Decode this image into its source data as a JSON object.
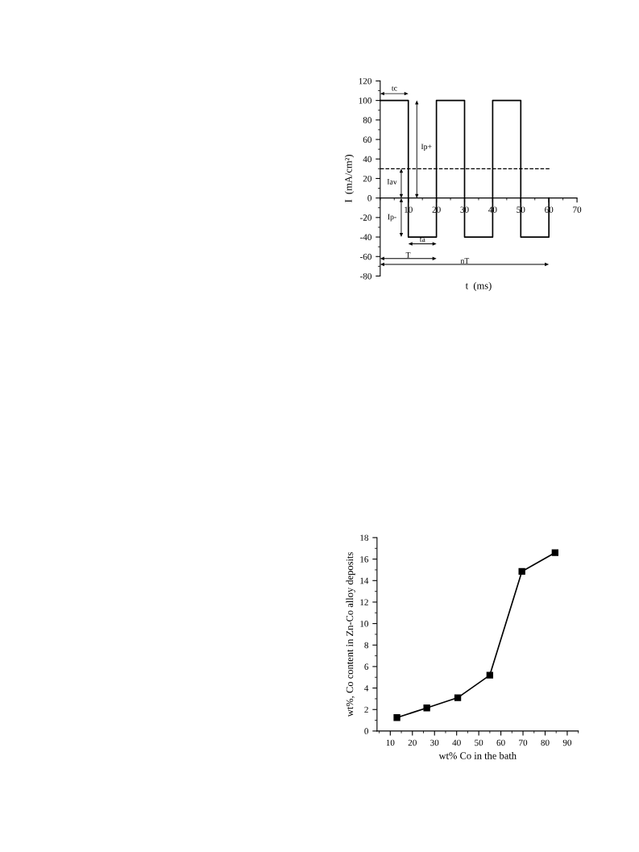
{
  "chart_data": [
    {
      "type": "line",
      "xlabel": "t  (ms)",
      "ylabel": "I  (mA/cm²)",
      "series": [
        {
          "color": "#000000",
          "x": [
            0,
            10,
            10,
            20,
            20,
            30,
            30,
            40,
            40,
            50,
            50,
            60,
            60
          ],
          "values": [
            100,
            100,
            -40,
            -40,
            100,
            100,
            -40,
            -40,
            100,
            100,
            -40,
            -40,
            0
          ]
        }
      ],
      "xlim": [
        0,
        70
      ],
      "xticks": [
        10,
        20,
        30,
        40,
        50,
        60,
        70
      ],
      "ylim": [
        -80,
        120
      ],
      "yticks": [
        -80,
        -60,
        -40,
        -20,
        0,
        20,
        40,
        60,
        80,
        100,
        120
      ],
      "ref_lines": [
        {
          "axis": "y",
          "value": 30,
          "line_style": "dashed",
          "color": "#000000"
        }
      ],
      "annotations": [
        "tc",
        "Ip+",
        "Iav",
        "Ip-",
        "ta",
        "T",
        "nT"
      ],
      "grid": false,
      "legend": false,
      "marker": "none",
      "line_style": "solid"
    },
    {
      "type": "line",
      "xlabel": "wt% Co in the bath",
      "ylabel": "wt%, Co content in Zn-Co alloy deposits",
      "series": [
        {
          "color": "#000000",
          "x": [
            13,
            26.5,
            40.5,
            55,
            69.5,
            84.5
          ],
          "values": [
            1.25,
            2.15,
            3.1,
            5.2,
            14.85,
            16.6
          ]
        }
      ],
      "xlim": [
        4,
        95
      ],
      "xticks": [
        10,
        20,
        30,
        40,
        50,
        60,
        70,
        80,
        90
      ],
      "ylim": [
        0,
        18
      ],
      "yticks": [
        0,
        2,
        4,
        6,
        8,
        10,
        12,
        14,
        16,
        18
      ],
      "grid": false,
      "legend": false,
      "marker": "square",
      "line_style": "solid"
    }
  ]
}
